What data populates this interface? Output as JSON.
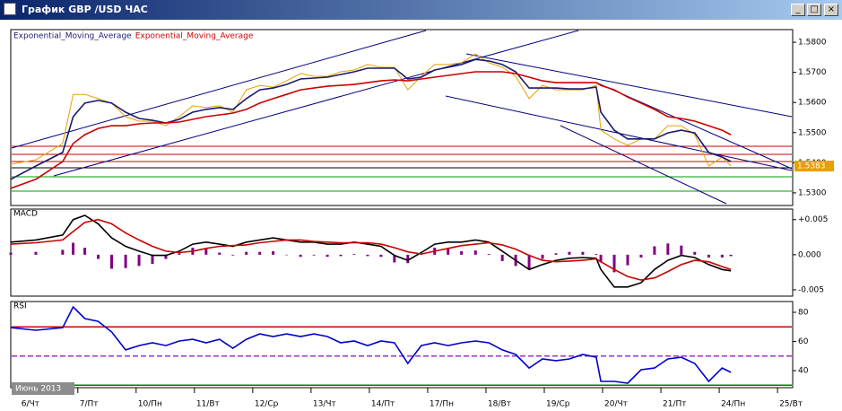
{
  "window": {
    "title": "График GBP /USD ЧАС"
  },
  "chart_data": [
    {
      "type": "line",
      "legend": "top-left",
      "x": [
        -0.15,
        0.28,
        0.74,
        0.92,
        1.12,
        1.35,
        1.58,
        1.82,
        2.05,
        2.28,
        2.51,
        2.74,
        2.97,
        3.2,
        3.43,
        3.66,
        3.89,
        4.12,
        4.35,
        4.58,
        4.82,
        5.05,
        5.28,
        5.51,
        5.74,
        5.97,
        6.2,
        6.43,
        6.66,
        6.89,
        7.12,
        7.35,
        7.58,
        7.82,
        8.05,
        8.28,
        8.51,
        8.74,
        8.97,
        9.2,
        9.43,
        9.66,
        9.89,
        9.97,
        10.2,
        10.43,
        10.66,
        10.89,
        11.12,
        11.35,
        11.58,
        11.82,
        12.05,
        12.2
      ],
      "xlim": [
        -0.15,
        13.26
      ],
      "ylim": [
        1.5258,
        1.5842
      ],
      "yticks": [
        {
          "value": 1.53,
          "label": "1.5300"
        },
        {
          "value": 1.54,
          "label": "1.5400"
        },
        {
          "value": 1.55,
          "label": "1.5500"
        },
        {
          "value": 1.56,
          "label": "1.5600"
        },
        {
          "value": 1.57,
          "label": "1.5700"
        },
        {
          "value": 1.58,
          "label": "1.5800"
        }
      ],
      "last_label": "1.5383",
      "series": [
        {
          "color": "#e8a000",
          "values": [
            1.5395,
            1.541,
            1.5464,
            1.5627,
            1.5627,
            1.5613,
            1.5598,
            1.5553,
            1.5538,
            1.5538,
            1.5523,
            1.5553,
            1.5589,
            1.5583,
            1.5589,
            1.5568,
            1.5642,
            1.5657,
            1.5651,
            1.5672,
            1.5696,
            1.5687,
            1.5687,
            1.5702,
            1.5708,
            1.5726,
            1.5717,
            1.5717,
            1.5642,
            1.5687,
            1.5726,
            1.5726,
            1.5732,
            1.5761,
            1.5732,
            1.5717,
            1.5687,
            1.5613,
            1.5657,
            1.5642,
            1.5642,
            1.5642,
            1.5657,
            1.5508,
            1.5479,
            1.5458,
            1.5479,
            1.5479,
            1.5523,
            1.5523,
            1.5493,
            1.5389,
            1.5419,
            1.5389
          ]
        },
        {
          "name": "Exponential_Moving_Average",
          "color": "#1a1a6e",
          "values": [
            1.5345,
            1.5389,
            1.5434,
            1.5553,
            1.5598,
            1.5607,
            1.5598,
            1.5568,
            1.5547,
            1.5541,
            1.5532,
            1.5544,
            1.5568,
            1.5577,
            1.5583,
            1.5577,
            1.5613,
            1.5642,
            1.5648,
            1.566,
            1.5678,
            1.5681,
            1.5684,
            1.5693,
            1.5702,
            1.5714,
            1.5714,
            1.5714,
            1.5678,
            1.5684,
            1.5708,
            1.5717,
            1.5726,
            1.5743,
            1.5738,
            1.5726,
            1.5702,
            1.5648,
            1.5648,
            1.5648,
            1.5645,
            1.5645,
            1.5651,
            1.5568,
            1.5508,
            1.5479,
            1.5479,
            1.5479,
            1.5499,
            1.5508,
            1.5499,
            1.5434,
            1.5419,
            1.5404
          ]
        },
        {
          "name": "Exponential_Moving_Average",
          "color": "#cc0000",
          "values": [
            1.5315,
            1.5345,
            1.5404,
            1.5464,
            1.5493,
            1.5514,
            1.5523,
            1.5523,
            1.5529,
            1.5532,
            1.5532,
            1.5535,
            1.5544,
            1.5553,
            1.5559,
            1.5565,
            1.5577,
            1.5598,
            1.5613,
            1.5627,
            1.5642,
            1.5648,
            1.5654,
            1.5657,
            1.566,
            1.5666,
            1.5672,
            1.5675,
            1.5672,
            1.5678,
            1.5684,
            1.569,
            1.5696,
            1.5702,
            1.5702,
            1.5702,
            1.5696,
            1.5684,
            1.5672,
            1.5666,
            1.5666,
            1.5666,
            1.5666,
            1.5657,
            1.5642,
            1.5618,
            1.5598,
            1.5577,
            1.5553,
            1.5547,
            1.5538,
            1.5523,
            1.5508,
            1.5493
          ]
        }
      ]
    },
    {
      "type": "macd",
      "title": "MACD",
      "x": [
        -0.15,
        0.28,
        0.74,
        0.92,
        1.12,
        1.35,
        1.58,
        1.82,
        2.05,
        2.28,
        2.51,
        2.74,
        2.97,
        3.2,
        3.43,
        3.66,
        3.89,
        4.12,
        4.35,
        4.58,
        4.82,
        5.05,
        5.28,
        5.51,
        5.74,
        5.97,
        6.2,
        6.43,
        6.66,
        6.89,
        7.12,
        7.35,
        7.58,
        7.82,
        8.05,
        8.28,
        8.51,
        8.74,
        8.97,
        9.2,
        9.43,
        9.66,
        9.89,
        9.97,
        10.2,
        10.43,
        10.66,
        10.89,
        11.12,
        11.35,
        11.58,
        11.82,
        12.05,
        12.2
      ],
      "xlim": [
        -0.15,
        13.26
      ],
      "ylim": [
        -0.0059,
        0.0065
      ],
      "yticks": [
        {
          "value": 0.005,
          "label": "+0.005"
        },
        {
          "value": 0,
          "label": "0.000"
        },
        {
          "value": -0.005,
          "label": "-0.005"
        }
      ],
      "series": [
        {
          "color": "#800080",
          "style": "bar",
          "values": [
            0.0003,
            0.0004,
            0.0007,
            0.0017,
            0.001,
            -0.0006,
            -0.002,
            -0.0019,
            -0.0016,
            -0.0013,
            -0.0006,
            0.0002,
            0.001,
            0.0009,
            0.0003,
            -0.0001,
            0.0004,
            0.0004,
            0.0005,
            0,
            -0.0003,
            -0.0001,
            -0.0003,
            -0.0002,
            0.0001,
            -0.0002,
            -0.0003,
            -0.0011,
            -0.0012,
            0.0002,
            0.001,
            0.0009,
            0.0005,
            0.0006,
            0.0001,
            -0.0009,
            -0.0016,
            -0.002,
            -0.0006,
            0.0002,
            0.0004,
            0.0004,
            0.0001,
            -0.0011,
            -0.0025,
            -0.0015,
            -0.0004,
            0.0012,
            0.0016,
            0.0013,
            0.0004,
            -0.0004,
            -0.0004,
            -0.0002
          ]
        },
        {
          "color": "#000000",
          "values": [
            0.0018,
            0.0021,
            0.0028,
            0.005,
            0.0056,
            0.0044,
            0.0024,
            0.0012,
            0.0005,
            -0.0001,
            -0.0001,
            0.0005,
            0.0015,
            0.0018,
            0.0015,
            0.0012,
            0.0018,
            0.0021,
            0.0024,
            0.0021,
            0.0018,
            0.0018,
            0.0015,
            0.0015,
            0.0018,
            0.0015,
            0.0012,
            -0.0001,
            -0.0008,
            0.0003,
            0.0015,
            0.0018,
            0.0018,
            0.0021,
            0.0018,
            0.0005,
            -0.0008,
            -0.0021,
            -0.0014,
            -0.0008,
            -0.0005,
            -0.0004,
            -0.0005,
            -0.0021,
            -0.0046,
            -0.0046,
            -0.004,
            -0.0021,
            -0.0008,
            -0.0001,
            -0.0004,
            -0.0014,
            -0.0021,
            -0.0023
          ]
        },
        {
          "color": "#cc0000",
          "values": [
            0.0015,
            0.0017,
            0.0021,
            0.0033,
            0.0046,
            0.005,
            0.0044,
            0.0031,
            0.0021,
            0.0012,
            0.0005,
            0.0003,
            0.0005,
            0.0009,
            0.0012,
            0.0013,
            0.0014,
            0.0017,
            0.0019,
            0.0021,
            0.0021,
            0.0019,
            0.0018,
            0.0017,
            0.0017,
            0.0017,
            0.0015,
            0.001,
            0.0004,
            0.0001,
            0.0005,
            0.0009,
            0.0013,
            0.0015,
            0.0017,
            0.0014,
            0.0008,
            -0.0001,
            -0.0008,
            -0.001,
            -0.0009,
            -0.0008,
            -0.0006,
            -0.001,
            -0.0021,
            -0.0031,
            -0.0036,
            -0.0033,
            -0.0024,
            -0.0014,
            -0.0008,
            -0.001,
            -0.0017,
            -0.0021
          ]
        }
      ]
    },
    {
      "type": "line",
      "title": "RSI",
      "x": [
        -0.15,
        0.28,
        0.74,
        0.92,
        1.12,
        1.35,
        1.58,
        1.82,
        2.05,
        2.28,
        2.51,
        2.74,
        2.97,
        3.2,
        3.43,
        3.66,
        3.89,
        4.12,
        4.35,
        4.58,
        4.82,
        5.05,
        5.28,
        5.51,
        5.74,
        5.97,
        6.2,
        6.43,
        6.66,
        6.89,
        7.12,
        7.35,
        7.58,
        7.82,
        8.05,
        8.28,
        8.51,
        8.74,
        8.97,
        9.2,
        9.43,
        9.66,
        9.89,
        9.97,
        10.2,
        10.43,
        10.66,
        10.89,
        11.12,
        11.35,
        11.58,
        11.82,
        12.05,
        12.2
      ],
      "xlim": [
        -0.15,
        13.26
      ],
      "ylim": [
        28.3,
        87.4
      ],
      "yticks": [
        40,
        60,
        80
      ],
      "levels": [
        70,
        50,
        30
      ],
      "level_colors": [
        "#cc0000",
        "#9933cc",
        "#008000"
      ],
      "xticks": [
        {
          "value": 0,
          "label": "6/Чт"
        },
        {
          "value": 1,
          "label": "7/Пт"
        },
        {
          "value": 2,
          "label": "10/Пн"
        },
        {
          "value": 3,
          "label": "11/Вт"
        },
        {
          "value": 4,
          "label": "12/Ср"
        },
        {
          "value": 5,
          "label": "13/Чт"
        },
        {
          "value": 6,
          "label": "14/Пт"
        },
        {
          "value": 7,
          "label": "17/Пн"
        },
        {
          "value": 8,
          "label": "18/Вт"
        },
        {
          "value": 9,
          "label": "19/Ср"
        },
        {
          "value": 10,
          "label": "20/Чт"
        },
        {
          "value": 11,
          "label": "21/Пт"
        },
        {
          "value": 12,
          "label": "24/Пн"
        },
        {
          "value": 13,
          "label": "25/Вт"
        }
      ],
      "period_label": "Июнь 2013",
      "series": [
        {
          "color": "#0000cc",
          "values": [
            69.5,
            67.7,
            69.5,
            83.7,
            75.7,
            73.8,
            66.5,
            54.2,
            57.2,
            59.1,
            57.2,
            60.3,
            61.5,
            59.1,
            61.5,
            55.4,
            61.5,
            65.2,
            63.4,
            65.2,
            63.4,
            65.2,
            63.4,
            59.1,
            60.3,
            57.2,
            60.3,
            59.1,
            44.9,
            57.2,
            59.1,
            57.2,
            59.1,
            60.3,
            59.1,
            54.2,
            51.1,
            41.8,
            48,
            46.8,
            48,
            51.1,
            49.2,
            32.6,
            32.6,
            31.4,
            40.6,
            41.8,
            48,
            49.2,
            44.9,
            32.6,
            41.8,
            38.8
          ]
        }
      ]
    }
  ]
}
